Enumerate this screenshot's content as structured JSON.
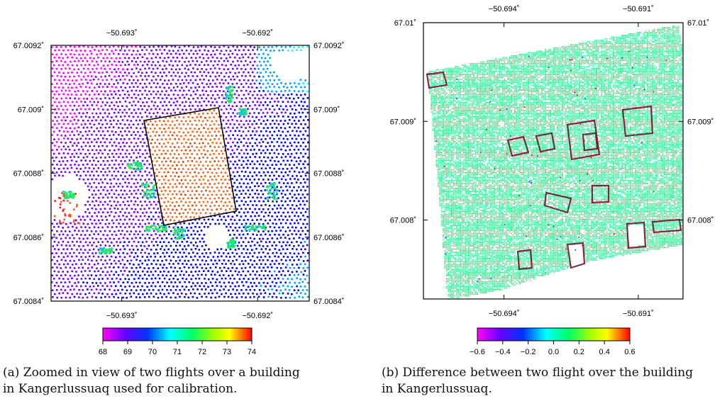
{
  "captions": {
    "a_line1": "(a) Zoomed in view of two flights over a building",
    "a_line2": "in Kangerlussuaq used for calibration.",
    "b_line1": "(b) Difference between two flight over the building",
    "b_line2": "in Kangerlussuaq."
  },
  "chart_data": [
    {
      "type": "scatter",
      "title": "",
      "x_ticks": [
        "−50.693˚",
        "−50.692˚"
      ],
      "x_tick_values": [
        -50.693,
        -50.692
      ],
      "y_ticks": [
        "67.0092˚",
        "67.009˚",
        "67.0088˚",
        "67.0086˚",
        "67.0084˚"
      ],
      "y_tick_values": [
        67.0092,
        67.009,
        67.0088,
        67.0086,
        67.0084
      ],
      "xlim": [
        -50.69352,
        -50.69162
      ],
      "ylim": [
        67.0084,
        67.0092
      ],
      "colorbar": {
        "min": 68,
        "max": 74,
        "ticks": [
          "68",
          "69",
          "70",
          "71",
          "72",
          "73",
          "74"
        ]
      },
      "palette": [
        "#ff00ff",
        "#7000ff",
        "#0000ff",
        "#00a0ff",
        "#00ffff",
        "#00ff66",
        "#8cff00",
        "#ffff00",
        "#ff9900",
        "#ff0000"
      ],
      "overlay_color": "#ee6a1e",
      "grid": false
    },
    {
      "type": "scatter",
      "title": "",
      "x_ticks": [
        "−50.694˚",
        "−50.691˚"
      ],
      "x_tick_values": [
        -50.694,
        -50.691
      ],
      "y_ticks": [
        "67.01˚",
        "67.009˚",
        "67.008˚"
      ],
      "y_tick_values": [
        67.01,
        67.009,
        67.008
      ],
      "xlim": [
        -50.6958,
        -50.69
      ],
      "ylim": [
        67.0072,
        67.01
      ],
      "colorbar": {
        "min": -0.6,
        "max": 0.6,
        "ticks": [
          "−0.6",
          "−0.4",
          "−0.2",
          "0.0",
          "0.2",
          "0.4",
          "0.6"
        ]
      },
      "palette": [
        "#ff00ff",
        "#7000ff",
        "#0000ff",
        "#00a0ff",
        "#00ffff",
        "#00ff66",
        "#8cff00",
        "#ffff00",
        "#ff9900",
        "#ff0000"
      ],
      "grid": false
    }
  ]
}
